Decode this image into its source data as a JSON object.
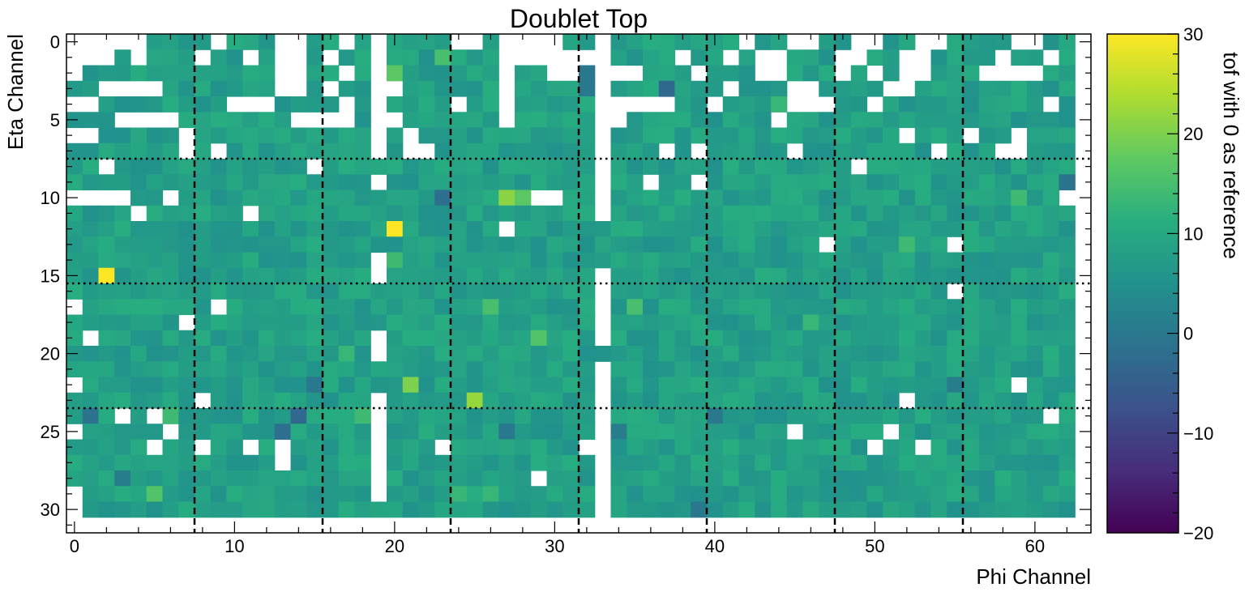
{
  "chart_data": {
    "type": "heatmap",
    "title": "Doublet Top",
    "xlabel": "Phi Channel",
    "ylabel": "Eta Channel",
    "colorbar_label": "tof with 0 as reference",
    "colormap": "viridis",
    "x_range": [
      -0.5,
      63.5
    ],
    "y_range": [
      -0.5,
      31.5
    ],
    "y_inverted": true,
    "x_ticks": [
      "0",
      "10",
      "20",
      "30",
      "40",
      "50",
      "60"
    ],
    "y_ticks": [
      "0",
      "5",
      "10",
      "15",
      "20",
      "25",
      "30"
    ],
    "clim": [
      -20,
      30
    ],
    "colorbar_ticks": [
      "30",
      "20",
      "10",
      "0",
      "−10",
      "−20"
    ],
    "data_rows": 31,
    "data_cols": 63,
    "base_value": 8,
    "vertical_dashed_lines_at_x": [
      7.5,
      15.5,
      23.5,
      31.5,
      39.5,
      47.5,
      55.5
    ],
    "horizontal_dotted_lines_at_y": [
      7.5,
      15.5,
      23.5
    ],
    "hot_cells": [
      {
        "x": 2,
        "y": 15,
        "value": 30
      },
      {
        "x": 20,
        "y": 12,
        "value": 30
      },
      {
        "x": 25,
        "y": 23,
        "value": 22
      },
      {
        "x": 21,
        "y": 22,
        "value": 20
      },
      {
        "x": 27,
        "y": 10,
        "value": 21
      },
      {
        "x": 28,
        "y": 10,
        "value": 17
      },
      {
        "x": 20,
        "y": 2,
        "value": 17
      },
      {
        "x": 23,
        "y": 1,
        "value": 15
      },
      {
        "x": 29,
        "y": 19,
        "value": 16
      },
      {
        "x": 35,
        "y": 17,
        "value": 15
      },
      {
        "x": 26,
        "y": 17,
        "value": 15
      },
      {
        "x": 5,
        "y": 29,
        "value": 16
      },
      {
        "x": 18,
        "y": 24,
        "value": 14
      },
      {
        "x": 6,
        "y": 24,
        "value": 14
      },
      {
        "x": 20,
        "y": 14,
        "value": 14
      },
      {
        "x": 52,
        "y": 13,
        "value": 14
      },
      {
        "x": 59,
        "y": 10,
        "value": 14
      },
      {
        "x": 46,
        "y": 18,
        "value": 13
      },
      {
        "x": 44,
        "y": 4,
        "value": 13
      },
      {
        "x": 26,
        "y": 29,
        "value": 13
      },
      {
        "x": 24,
        "y": 29,
        "value": 13
      },
      {
        "x": 17,
        "y": 20,
        "value": 13
      }
    ],
    "cold_cells": [
      {
        "x": 37,
        "y": 3,
        "value": -3
      },
      {
        "x": 23,
        "y": 10,
        "value": -2
      },
      {
        "x": 14,
        "y": 24,
        "value": -3
      },
      {
        "x": 13,
        "y": 25,
        "value": -2
      },
      {
        "x": 1,
        "y": 24,
        "value": -1
      },
      {
        "x": 62,
        "y": 9,
        "value": -1
      },
      {
        "x": 15,
        "y": 22,
        "value": 0
      },
      {
        "x": 27,
        "y": 25,
        "value": 0
      },
      {
        "x": 40,
        "y": 24,
        "value": 0
      },
      {
        "x": 39,
        "y": 30,
        "value": 0
      },
      {
        "x": 32,
        "y": 2,
        "value": 0
      },
      {
        "x": 32,
        "y": 3,
        "value": 0
      },
      {
        "x": 3,
        "y": 28,
        "value": 1
      },
      {
        "x": 34,
        "y": 25,
        "value": 1
      },
      {
        "x": 55,
        "y": 22,
        "value": 1
      }
    ],
    "empty_cells": [
      [
        0,
        0
      ],
      [
        1,
        0
      ],
      [
        2,
        0
      ],
      [
        3,
        0
      ],
      [
        4,
        0
      ],
      [
        9,
        0
      ],
      [
        13,
        0
      ],
      [
        14,
        0
      ],
      [
        17,
        0
      ],
      [
        19,
        0
      ],
      [
        24,
        0
      ],
      [
        25,
        0
      ],
      [
        27,
        0
      ],
      [
        28,
        0
      ],
      [
        29,
        0
      ],
      [
        30,
        0
      ],
      [
        33,
        0
      ],
      [
        42,
        0
      ],
      [
        45,
        0
      ],
      [
        46,
        0
      ],
      [
        49,
        0
      ],
      [
        50,
        0
      ],
      [
        53,
        0
      ],
      [
        54,
        0
      ],
      [
        59,
        0
      ],
      [
        60,
        0
      ],
      [
        0,
        1
      ],
      [
        1,
        1
      ],
      [
        2,
        1
      ],
      [
        4,
        1
      ],
      [
        8,
        1
      ],
      [
        11,
        1
      ],
      [
        13,
        1
      ],
      [
        14,
        1
      ],
      [
        16,
        1
      ],
      [
        19,
        1
      ],
      [
        27,
        1
      ],
      [
        28,
        1
      ],
      [
        29,
        1
      ],
      [
        30,
        1
      ],
      [
        31,
        1
      ],
      [
        32,
        1
      ],
      [
        33,
        1
      ],
      [
        38,
        1
      ],
      [
        41,
        1
      ],
      [
        43,
        1
      ],
      [
        44,
        1
      ],
      [
        48,
        1
      ],
      [
        49,
        1
      ],
      [
        52,
        1
      ],
      [
        53,
        1
      ],
      [
        58,
        1
      ],
      [
        61,
        1
      ],
      [
        0,
        2
      ],
      [
        13,
        2
      ],
      [
        14,
        2
      ],
      [
        17,
        2
      ],
      [
        19,
        2
      ],
      [
        27,
        2
      ],
      [
        30,
        2
      ],
      [
        31,
        2
      ],
      [
        33,
        2
      ],
      [
        34,
        2
      ],
      [
        35,
        2
      ],
      [
        39,
        2
      ],
      [
        43,
        2
      ],
      [
        44,
        2
      ],
      [
        48,
        2
      ],
      [
        50,
        2
      ],
      [
        52,
        2
      ],
      [
        53,
        2
      ],
      [
        57,
        2
      ],
      [
        58,
        2
      ],
      [
        59,
        2
      ],
      [
        60,
        2
      ],
      [
        2,
        3
      ],
      [
        3,
        3
      ],
      [
        4,
        3
      ],
      [
        5,
        3
      ],
      [
        13,
        3
      ],
      [
        14,
        3
      ],
      [
        16,
        3
      ],
      [
        19,
        3
      ],
      [
        20,
        3
      ],
      [
        27,
        3
      ],
      [
        33,
        3
      ],
      [
        41,
        3
      ],
      [
        45,
        3
      ],
      [
        46,
        3
      ],
      [
        51,
        3
      ],
      [
        52,
        3
      ],
      [
        0,
        4
      ],
      [
        1,
        4
      ],
      [
        10,
        4
      ],
      [
        11,
        4
      ],
      [
        12,
        4
      ],
      [
        17,
        4
      ],
      [
        19,
        4
      ],
      [
        24,
        4
      ],
      [
        27,
        4
      ],
      [
        33,
        4
      ],
      [
        34,
        4
      ],
      [
        35,
        4
      ],
      [
        36,
        4
      ],
      [
        37,
        4
      ],
      [
        40,
        4
      ],
      [
        45,
        4
      ],
      [
        46,
        4
      ],
      [
        47,
        4
      ],
      [
        50,
        4
      ],
      [
        61,
        4
      ],
      [
        3,
        5
      ],
      [
        4,
        5
      ],
      [
        5,
        5
      ],
      [
        6,
        5
      ],
      [
        14,
        5
      ],
      [
        15,
        5
      ],
      [
        16,
        5
      ],
      [
        17,
        5
      ],
      [
        19,
        5
      ],
      [
        20,
        5
      ],
      [
        27,
        5
      ],
      [
        33,
        5
      ],
      [
        34,
        5
      ],
      [
        44,
        5
      ],
      [
        0,
        6
      ],
      [
        1,
        6
      ],
      [
        7,
        6
      ],
      [
        19,
        6
      ],
      [
        21,
        6
      ],
      [
        33,
        6
      ],
      [
        52,
        6
      ],
      [
        56,
        6
      ],
      [
        59,
        6
      ],
      [
        7,
        7
      ],
      [
        9,
        7
      ],
      [
        19,
        7
      ],
      [
        21,
        7
      ],
      [
        22,
        7
      ],
      [
        33,
        7
      ],
      [
        37,
        7
      ],
      [
        39,
        7
      ],
      [
        45,
        7
      ],
      [
        54,
        7
      ],
      [
        58,
        7
      ],
      [
        59,
        7
      ],
      [
        2,
        8
      ],
      [
        15,
        8
      ],
      [
        33,
        8
      ],
      [
        49,
        8
      ],
      [
        19,
        9
      ],
      [
        33,
        9
      ],
      [
        36,
        9
      ],
      [
        39,
        9
      ],
      [
        0,
        10
      ],
      [
        1,
        10
      ],
      [
        2,
        10
      ],
      [
        3,
        10
      ],
      [
        6,
        10
      ],
      [
        29,
        10
      ],
      [
        30,
        10
      ],
      [
        33,
        10
      ],
      [
        62,
        10
      ],
      [
        4,
        11
      ],
      [
        11,
        11
      ],
      [
        33,
        11
      ],
      [
        27,
        12
      ],
      [
        47,
        13
      ],
      [
        55,
        13
      ],
      [
        19,
        14
      ],
      [
        19,
        15
      ],
      [
        33,
        15
      ],
      [
        33,
        16
      ],
      [
        55,
        16
      ],
      [
        0,
        17
      ],
      [
        9,
        17
      ],
      [
        33,
        17
      ],
      [
        7,
        18
      ],
      [
        33,
        18
      ],
      [
        1,
        19
      ],
      [
        19,
        19
      ],
      [
        33,
        19
      ],
      [
        19,
        20
      ],
      [
        33,
        21
      ],
      [
        0,
        22
      ],
      [
        33,
        22
      ],
      [
        59,
        22
      ],
      [
        8,
        23
      ],
      [
        19,
        23
      ],
      [
        33,
        23
      ],
      [
        52,
        23
      ],
      [
        3,
        24
      ],
      [
        5,
        24
      ],
      [
        19,
        24
      ],
      [
        33,
        24
      ],
      [
        61,
        24
      ],
      [
        0,
        25
      ],
      [
        6,
        25
      ],
      [
        19,
        25
      ],
      [
        33,
        25
      ],
      [
        45,
        25
      ],
      [
        51,
        25
      ],
      [
        5,
        26
      ],
      [
        8,
        26
      ],
      [
        11,
        26
      ],
      [
        13,
        26
      ],
      [
        19,
        26
      ],
      [
        23,
        26
      ],
      [
        32,
        26
      ],
      [
        33,
        26
      ],
      [
        50,
        26
      ],
      [
        53,
        26
      ],
      [
        13,
        27
      ],
      [
        19,
        27
      ],
      [
        33,
        27
      ],
      [
        19,
        28
      ],
      [
        29,
        28
      ],
      [
        33,
        28
      ],
      [
        0,
        29
      ],
      [
        19,
        29
      ],
      [
        33,
        29
      ],
      [
        0,
        30
      ],
      [
        33,
        30
      ]
    ]
  }
}
